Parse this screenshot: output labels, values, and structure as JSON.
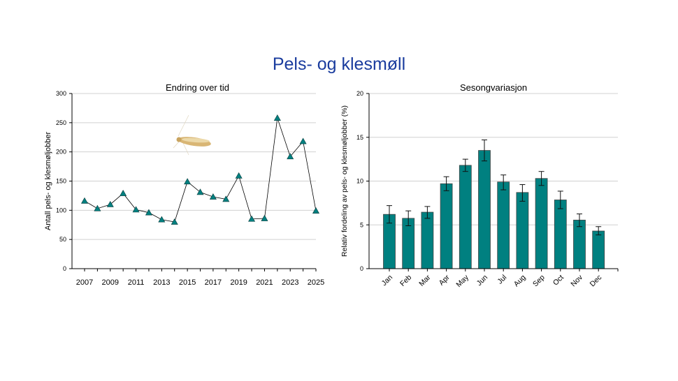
{
  "title": "Pels- og klesmøll",
  "chart_data": [
    {
      "type": "line",
      "title": "Endring over tid",
      "xlabel": "",
      "ylabel": "Antall pels- og klesmøljobber",
      "ylim": [
        0,
        300
      ],
      "yticks": [
        0,
        50,
        100,
        150,
        200,
        250,
        300
      ],
      "xtick_labels": [
        "2007",
        "2009",
        "2011",
        "2013",
        "2015",
        "2017",
        "2019",
        "2021",
        "2023",
        "2025"
      ],
      "grid": true,
      "marker": "triangle",
      "color": "#008080",
      "x": [
        2007,
        2008,
        2009,
        2010,
        2011,
        2012,
        2013,
        2014,
        2015,
        2016,
        2017,
        2018,
        2019,
        2020,
        2021,
        2022,
        2023,
        2024,
        2025
      ],
      "y": [
        116,
        103,
        110,
        129,
        101,
        96,
        84,
        80,
        149,
        131,
        123,
        119,
        159,
        85,
        86,
        258,
        192,
        218,
        99
      ]
    },
    {
      "type": "bar",
      "title": "Sesongvariasjon",
      "xlabel": "",
      "ylabel": "Relativ fordeling av pels- og klesmøljobber (%)",
      "ylim": [
        0,
        20
      ],
      "yticks": [
        0,
        5,
        10,
        15,
        20
      ],
      "grid": true,
      "color": "#008080",
      "categories": [
        "Jan",
        "Feb",
        "Mar",
        "Apr",
        "May",
        "Jun",
        "Jul",
        "Aug",
        "Sep",
        "Oct",
        "Nov",
        "Dec"
      ],
      "values": [
        6.2,
        5.75,
        6.45,
        9.7,
        11.8,
        13.5,
        9.9,
        8.7,
        10.3,
        7.85,
        5.55,
        4.3
      ],
      "error_low": [
        5.2,
        4.9,
        5.75,
        8.9,
        11.1,
        12.3,
        9.0,
        7.7,
        9.5,
        6.85,
        4.8,
        3.85
      ],
      "error_high": [
        7.2,
        6.6,
        7.1,
        10.5,
        12.5,
        14.7,
        10.7,
        9.6,
        11.1,
        8.85,
        6.25,
        4.8
      ]
    }
  ]
}
